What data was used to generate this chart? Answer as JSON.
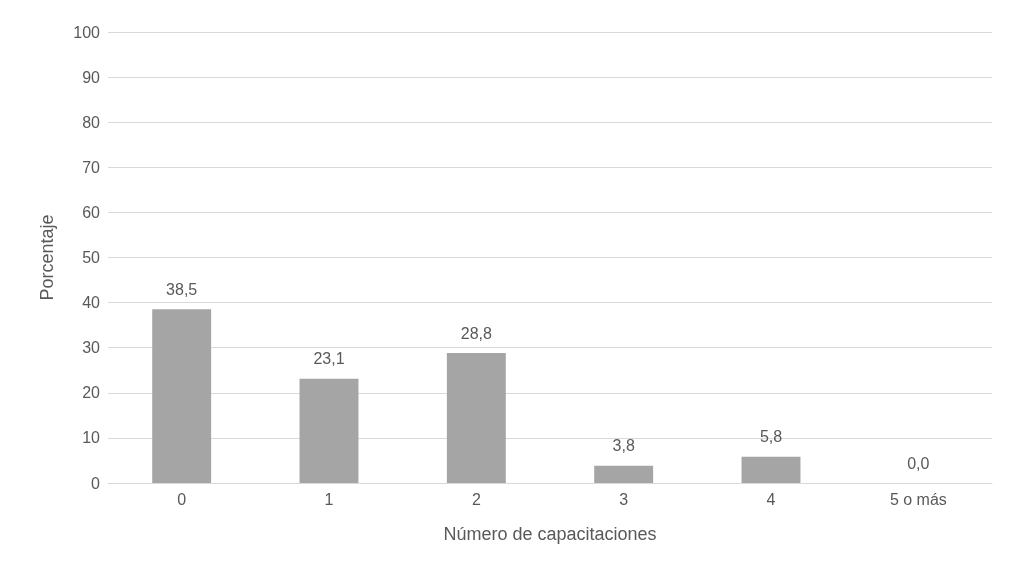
{
  "chart_data": {
    "type": "bar",
    "xlabel": "Número de capacitaciones",
    "ylabel": "Porcentaje",
    "categories": [
      "0",
      "1",
      "2",
      "3",
      "4",
      "5 o más"
    ],
    "values": [
      38.5,
      23.1,
      28.8,
      3.8,
      5.8,
      0.0
    ],
    "value_labels": [
      "38,5",
      "23,1",
      "28,8",
      "3,8",
      "5,8",
      "0,0"
    ],
    "color": "#a5a5a5",
    "ylim": [
      0,
      100
    ],
    "yticks": [
      0,
      10,
      20,
      30,
      40,
      50,
      60,
      70,
      80,
      90,
      100
    ],
    "grid": "y"
  }
}
